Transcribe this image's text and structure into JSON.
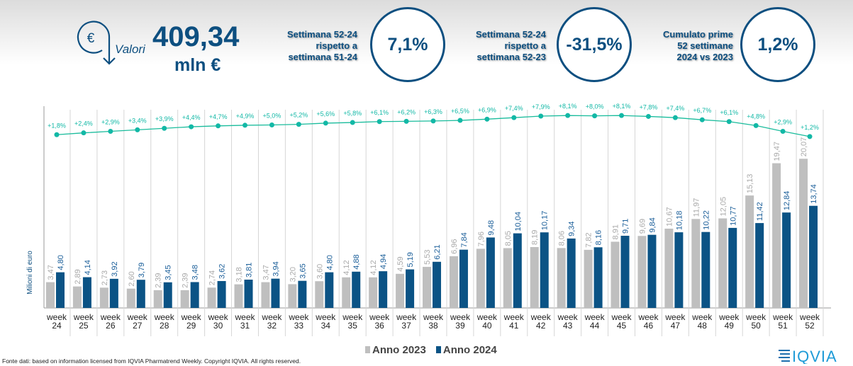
{
  "header": {
    "icon": "euro-circle-arrow-icon",
    "valori_label": "Valori",
    "total_value": "409,34",
    "total_unit": "mln €",
    "kpis": [
      {
        "label_lines": [
          "Settimana 52-24",
          "rispetto a",
          "settimana 51-24"
        ],
        "value": "7,1%"
      },
      {
        "label_lines": [
          "Settimana 52-24",
          "rispetto a",
          "settimana 52-23"
        ],
        "value": "-31,5%"
      },
      {
        "label_lines": [
          "Cumulato prime",
          "52 settimane",
          "2024 vs 2023"
        ],
        "value": "1,2%"
      }
    ]
  },
  "chart_data": {
    "type": "bar",
    "ylabel": "Milioni di euro",
    "categories": [
      "week 24",
      "week 25",
      "week 26",
      "week 27",
      "week 28",
      "week 29",
      "week 30",
      "week 31",
      "week 32",
      "week 33",
      "week 34",
      "week 35",
      "week 36",
      "week 37",
      "week 38",
      "week 39",
      "week 40",
      "week 41",
      "week 42",
      "week 43",
      "week 44",
      "week 45",
      "week 46",
      "week 47",
      "week 48",
      "week 49",
      "week 50",
      "week 51",
      "week 52"
    ],
    "series": [
      {
        "name": "Anno 2023",
        "color": "#bfbfbf",
        "labels": [
          "3,47",
          "2,89",
          "2,73",
          "2,60",
          "2,39",
          "2,39",
          "2,74",
          "3,18",
          "3,47",
          "3,20",
          "3,60",
          "4,12",
          "4,12",
          "4,59",
          "5,53",
          "6,96",
          "7,96",
          "8,05",
          "8,19",
          "8,06",
          "7,82",
          "8,91",
          "9,69",
          "10,67",
          "11,97",
          "12,05",
          "15,13",
          "19,47",
          "20,07"
        ],
        "values": [
          3.47,
          2.89,
          2.73,
          2.6,
          2.39,
          2.39,
          2.74,
          3.18,
          3.47,
          3.2,
          3.6,
          4.12,
          4.12,
          4.59,
          5.53,
          6.96,
          7.96,
          8.05,
          8.19,
          8.06,
          7.82,
          8.91,
          9.69,
          10.67,
          11.97,
          12.05,
          15.13,
          19.47,
          20.07
        ]
      },
      {
        "name": "Anno 2024",
        "color": "#0b5385",
        "labels": [
          "4,80",
          "4,14",
          "3,92",
          "3,79",
          "3,45",
          "3,48",
          "3,62",
          "3,81",
          "3,94",
          "3,65",
          "4,80",
          "4,88",
          "4,94",
          "5,19",
          "6,21",
          "7,84",
          "9,48",
          "10,04",
          "10,17",
          "9,34",
          "8,16",
          "9,71",
          "9,84",
          "10,18",
          "10,22",
          "10,77",
          "11,42",
          "12,84",
          "13,74"
        ],
        "values": [
          4.8,
          4.14,
          3.92,
          3.79,
          3.45,
          3.48,
          3.62,
          3.81,
          3.94,
          3.65,
          4.8,
          4.88,
          4.94,
          5.19,
          6.21,
          7.84,
          9.48,
          10.04,
          10.17,
          9.34,
          8.16,
          9.71,
          9.84,
          10.18,
          10.22,
          10.77,
          11.42,
          12.84,
          13.74
        ]
      }
    ],
    "cumulative_growth": {
      "color": "#1abc9c",
      "labels": [
        "+1,8%",
        "+2,4%",
        "+2,9%",
        "+3,4%",
        "+3,9%",
        "+4,4%",
        "+4,7%",
        "+4,9%",
        "+5,0%",
        "+5,2%",
        "+5,6%",
        "+5,8%",
        "+6,1%",
        "+6,2%",
        "+6,3%",
        "+6,5%",
        "+6,9%",
        "+7,4%",
        "+7,9%",
        "+8,1%",
        "+8,0%",
        "+8,1%",
        "+7,8%",
        "+7,4%",
        "+6,7%",
        "+6,1%",
        "+4,8%",
        "+2,9%",
        "+1,2%"
      ],
      "values": [
        1.8,
        2.4,
        2.9,
        3.4,
        3.9,
        4.4,
        4.7,
        4.9,
        5.0,
        5.2,
        5.6,
        5.8,
        6.1,
        6.2,
        6.3,
        6.5,
        6.9,
        7.4,
        7.9,
        8.1,
        8.0,
        8.1,
        7.8,
        7.4,
        6.7,
        6.1,
        4.8,
        2.9,
        1.2
      ]
    },
    "grid": "vertical separators",
    "legend_position": "bottom"
  },
  "legend": [
    "Anno 2023",
    "Anno 2024"
  ],
  "footer": {
    "source": "Fonte dati: based on information licensed from IQVIA Pharmatrend Weekly. Copyright IQVIA. All rights reserved.",
    "logo": "IQVIA"
  }
}
